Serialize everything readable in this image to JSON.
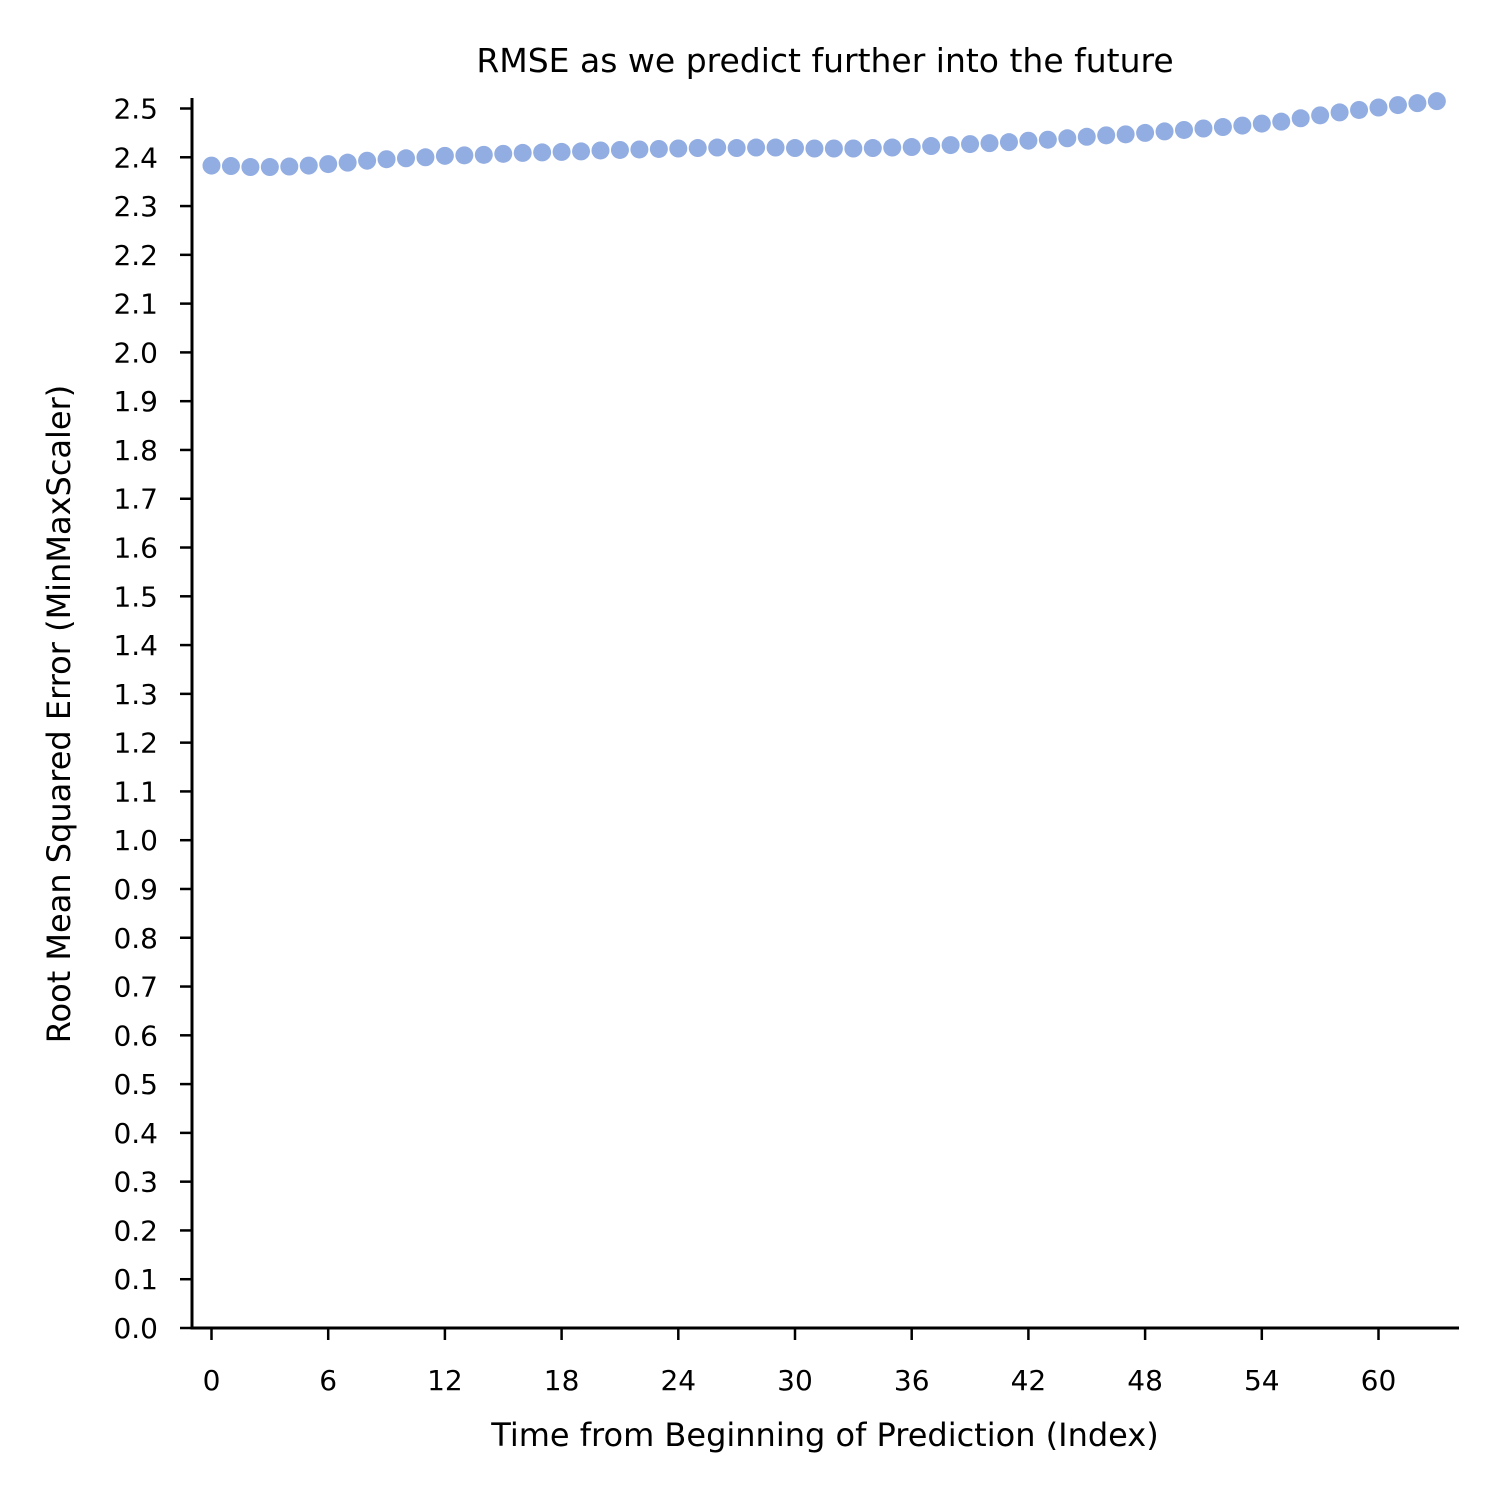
{
  "chart_data": {
    "type": "scatter",
    "title": "RMSE as we predict further into the future",
    "xlabel": "Time from Beginning of Prediction (Index)",
    "ylabel": "Root Mean Squared Error (MinMaxScaler)",
    "xlim": [
      -1,
      64
    ],
    "ylim": [
      0,
      2.52
    ],
    "xticks": [
      0,
      6,
      12,
      18,
      24,
      30,
      36,
      42,
      48,
      54,
      60
    ],
    "yticks": [
      0.0,
      0.1,
      0.2,
      0.3,
      0.4,
      0.5,
      0.6,
      0.7,
      0.8,
      0.9,
      1.0,
      1.1,
      1.2,
      1.3,
      1.4,
      1.5,
      1.6,
      1.7,
      1.8,
      1.9,
      2.0,
      2.1,
      2.2,
      2.3,
      2.4,
      2.5
    ],
    "grid": false,
    "color": "#92ADE1",
    "series": [
      {
        "x": [
          0,
          1,
          2,
          3,
          4,
          5,
          6,
          7,
          8,
          9,
          10,
          11,
          12,
          13,
          14,
          15,
          16,
          17,
          18,
          19,
          20,
          21,
          22,
          23,
          24,
          25,
          26,
          27,
          28,
          29,
          30,
          31,
          32,
          33,
          34,
          35,
          36,
          37,
          38,
          39,
          40,
          41,
          42,
          43,
          44,
          45,
          46,
          47,
          48,
          49,
          50,
          51,
          52,
          53,
          54,
          55,
          56,
          57,
          58,
          59,
          60,
          61,
          62,
          63
        ],
        "values": [
          2.383,
          2.382,
          2.38,
          2.38,
          2.381,
          2.383,
          2.386,
          2.389,
          2.393,
          2.396,
          2.398,
          2.4,
          2.403,
          2.404,
          2.405,
          2.407,
          2.409,
          2.41,
          2.411,
          2.412,
          2.414,
          2.415,
          2.416,
          2.417,
          2.418,
          2.419,
          2.42,
          2.419,
          2.42,
          2.42,
          2.419,
          2.418,
          2.418,
          2.418,
          2.419,
          2.42,
          2.421,
          2.423,
          2.425,
          2.427,
          2.429,
          2.431,
          2.434,
          2.436,
          2.439,
          2.442,
          2.445,
          2.447,
          2.45,
          2.453,
          2.456,
          2.459,
          2.462,
          2.465,
          2.469,
          2.473,
          2.48,
          2.486,
          2.492,
          2.497,
          2.502,
          2.507,
          2.511,
          2.515
        ]
      }
    ]
  }
}
